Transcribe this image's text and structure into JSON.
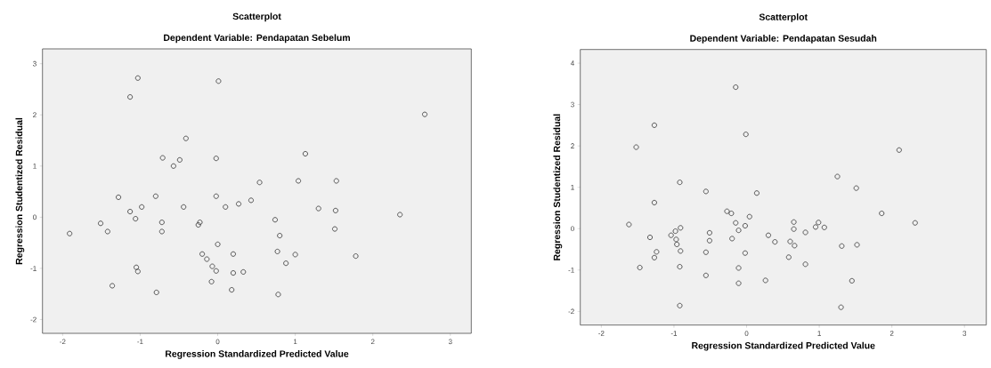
{
  "chart_data": [
    {
      "type": "scatter",
      "title": "Scatterplot",
      "subtitle": "Dependent Variable: Pendapatan Sebelum",
      "xlabel": "Regression Standardized Predicted Value",
      "ylabel": "Regression Studentized Residual",
      "marker": "circle",
      "color": "#333333",
      "x": [
        -1.91,
        -1.51,
        -1.42,
        -1.36,
        -1.28,
        -1.13,
        -1.13,
        -1.06,
        -1.05,
        -1.03,
        -1.03,
        -0.98,
        -0.8,
        -0.79,
        -0.72,
        -0.72,
        -0.71,
        -0.57,
        -0.49,
        -0.44,
        -0.41,
        -0.25,
        -0.23,
        -0.2,
        -0.14,
        -0.08,
        -0.07,
        -0.02,
        -0.02,
        -0.02,
        0.0,
        0.01,
        0.1,
        0.18,
        0.2,
        0.2,
        0.27,
        0.33,
        0.43,
        0.54,
        0.74,
        0.8,
        0.77,
        0.78,
        0.88,
        1.0,
        1.04,
        1.13,
        1.3,
        1.52,
        1.51,
        1.53,
        1.78,
        2.35,
        2.67
      ],
      "values": [
        -0.32,
        -0.12,
        -0.28,
        -1.34,
        0.39,
        2.35,
        0.11,
        -0.03,
        -0.98,
        -1.06,
        2.72,
        0.2,
        0.41,
        -1.47,
        -0.1,
        -0.28,
        1.16,
        1.0,
        1.12,
        0.2,
        1.54,
        -0.15,
        -0.1,
        -0.72,
        -0.82,
        -1.26,
        -0.96,
        -1.05,
        0.41,
        1.15,
        -0.53,
        2.66,
        0.2,
        -1.42,
        -0.72,
        -1.09,
        0.26,
        -1.07,
        0.33,
        0.68,
        -0.05,
        -0.36,
        -0.67,
        -1.51,
        -0.9,
        -0.73,
        0.71,
        1.24,
        0.17,
        0.13,
        -0.23,
        0.71,
        -0.76,
        0.05,
        2.01
      ],
      "xlim": [
        -2.26,
        3.27
      ],
      "ylim": [
        -2.27,
        3.29
      ],
      "xticks": [
        -2,
        -1,
        0,
        1,
        2,
        3
      ],
      "yticks": [
        -2,
        -1,
        0,
        1,
        2,
        3
      ]
    },
    {
      "type": "scatter",
      "title": "Scatterplot",
      "subtitle": "Dependent Variable: Pendapatan Sesudah",
      "xlabel": "Regression Standardized Predicted Value",
      "ylabel": "Regression Studentized Residual",
      "marker": "circle",
      "color": "#333333",
      "x": [
        -1.62,
        -1.52,
        -1.47,
        -1.33,
        -1.27,
        -1.27,
        -1.27,
        -1.24,
        -1.04,
        -0.98,
        -0.97,
        -0.96,
        -0.92,
        -0.91,
        -0.91,
        -0.92,
        -0.92,
        -0.56,
        -0.51,
        -0.51,
        -0.56,
        -0.56,
        -0.27,
        -0.21,
        -0.2,
        -0.15,
        -0.15,
        -0.11,
        -0.11,
        -0.11,
        -0.01,
        -0.02,
        -0.02,
        0.04,
        0.14,
        0.26,
        0.3,
        0.39,
        0.58,
        0.6,
        0.65,
        0.65,
        0.66,
        0.81,
        0.81,
        0.95,
        0.99,
        1.07,
        1.25,
        1.31,
        1.3,
        1.45,
        1.51,
        1.52,
        1.86,
        2.1,
        2.32
      ],
      "values": [
        0.1,
        1.97,
        -0.94,
        -0.21,
        2.5,
        0.63,
        -0.7,
        -0.56,
        -0.16,
        -0.06,
        -0.26,
        -0.38,
        1.12,
        0.02,
        -0.54,
        -0.92,
        -1.86,
        0.9,
        -0.1,
        -0.29,
        -0.57,
        -1.13,
        0.42,
        0.37,
        -0.24,
        3.42,
        0.14,
        -0.04,
        -0.95,
        -1.32,
        2.28,
        0.07,
        -0.59,
        0.29,
        0.86,
        -1.25,
        -0.16,
        -0.32,
        -0.69,
        -0.31,
        0.16,
        -0.01,
        -0.41,
        -0.09,
        -0.86,
        0.04,
        0.15,
        0.03,
        1.26,
        -0.42,
        -1.9,
        -1.26,
        0.98,
        -0.39,
        0.37,
        1.9,
        0.14
      ],
      "xlim": [
        -2.29,
        3.3
      ],
      "ylim": [
        -2.33,
        4.33
      ],
      "xticks": [
        -2,
        -1,
        0,
        1,
        2,
        3
      ],
      "yticks": [
        -2,
        -1,
        0,
        1,
        2,
        3,
        4
      ]
    }
  ]
}
